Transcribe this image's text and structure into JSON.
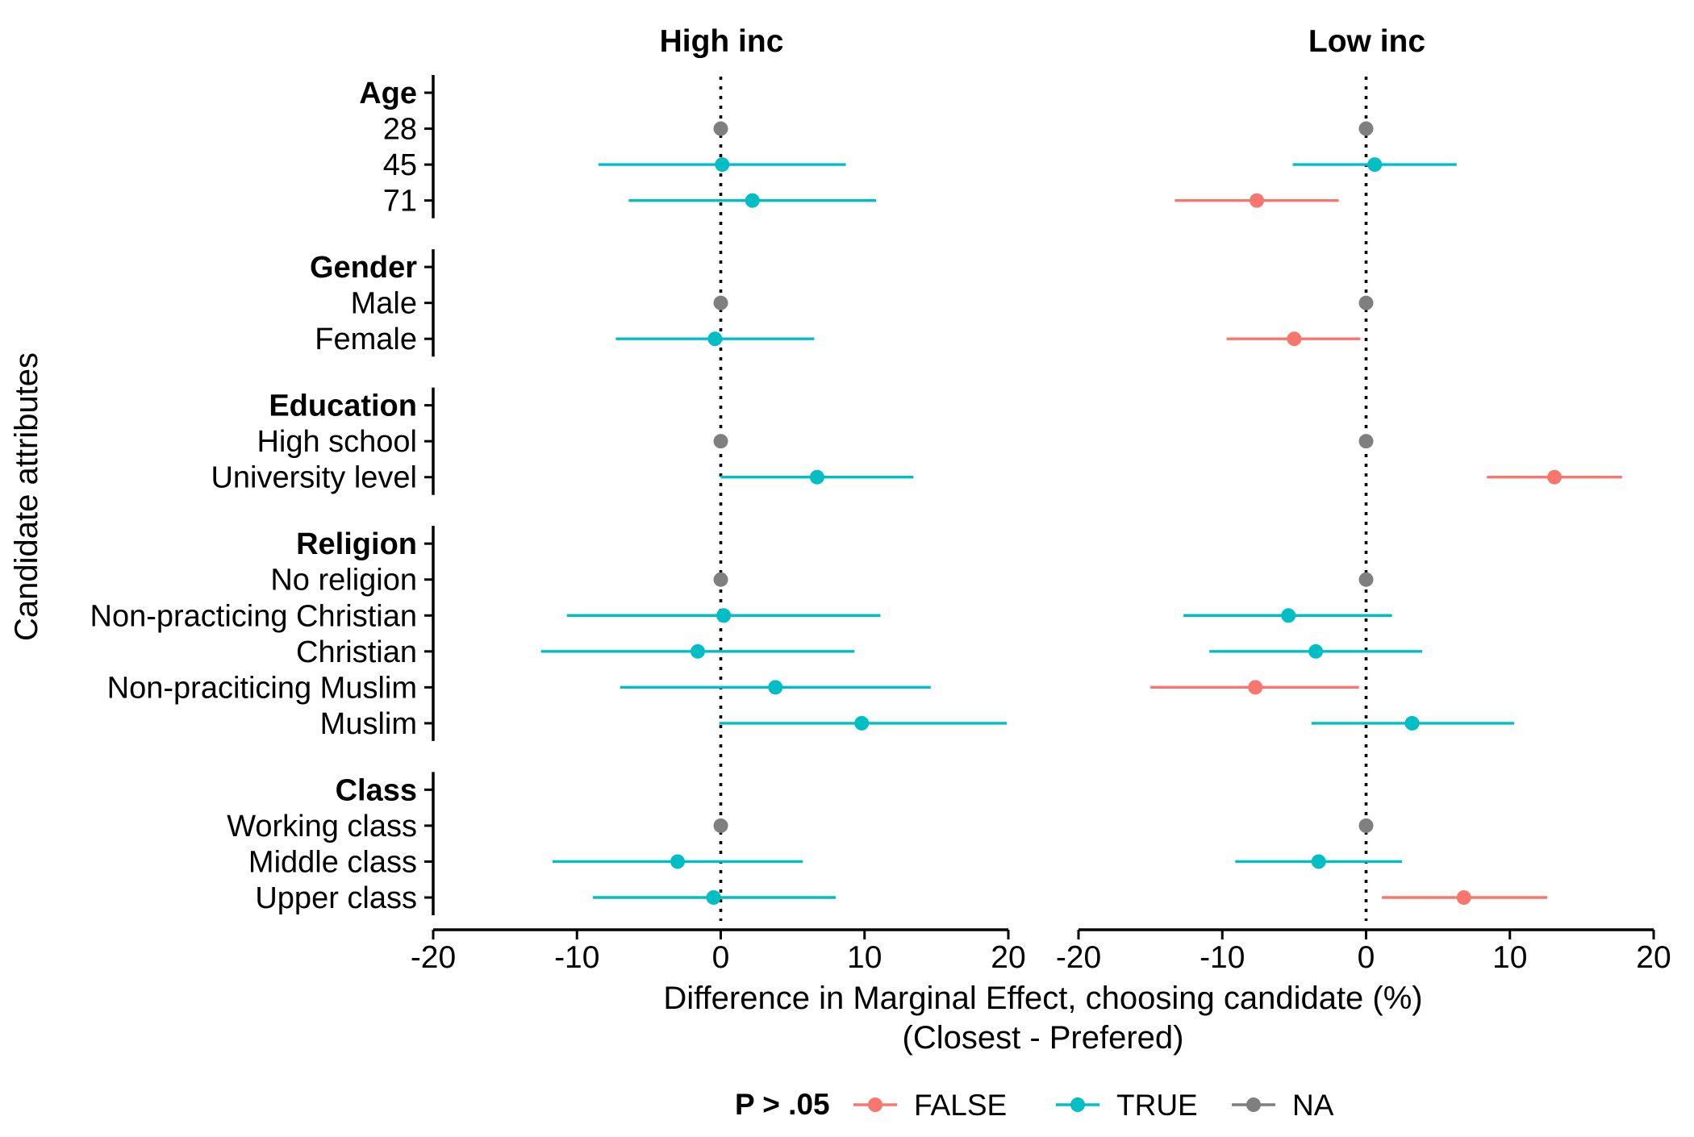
{
  "chart_data": {
    "type": "scatter",
    "subtype": "coefficient-plot-with-error-bars",
    "ylabel": "Candidate attributes",
    "xlabel": "Difference in Marginal Effect, choosing candidate (%)",
    "xlabel_line2": "(Closest - Prefered)",
    "xlim": [
      -20,
      20
    ],
    "xticks": [
      -20,
      -10,
      0,
      10,
      20
    ],
    "xtick_labels": [
      "-20",
      "-10",
      "0",
      "10",
      "20"
    ],
    "reference_line": 0,
    "grid": false,
    "panels": [
      "High inc",
      "Low inc"
    ],
    "groups": [
      {
        "label": "Age",
        "levels": [
          "28",
          "45",
          "71"
        ]
      },
      {
        "label": "Gender",
        "levels": [
          "Male",
          "Female"
        ]
      },
      {
        "label": "Education",
        "levels": [
          "High school",
          "University level"
        ]
      },
      {
        "label": "Religion",
        "levels": [
          "No religion",
          "Non-practicing Christian",
          "Christian",
          "Non-praciticing Muslim",
          "Muslim"
        ]
      },
      {
        "label": "Class",
        "levels": [
          "Working class",
          "Middle class",
          "Upper class"
        ]
      }
    ],
    "legend": {
      "title": "P > .05",
      "position": "bottom",
      "entries": [
        {
          "label": "FALSE",
          "color": "#F8766D"
        },
        {
          "label": "TRUE",
          "color": "#00BFC4"
        },
        {
          "label": "NA",
          "color": "#7F7F7F"
        }
      ]
    },
    "series": [
      {
        "panel": "High inc",
        "points": [
          {
            "level": "28",
            "est": 0,
            "lo": null,
            "hi": null,
            "sig": "NA"
          },
          {
            "level": "45",
            "est": 0.1,
            "lo": -8.5,
            "hi": 8.7,
            "sig": "TRUE"
          },
          {
            "level": "71",
            "est": 2.2,
            "lo": -6.4,
            "hi": 10.8,
            "sig": "TRUE"
          },
          {
            "level": "Male",
            "est": 0,
            "lo": null,
            "hi": null,
            "sig": "NA"
          },
          {
            "level": "Female",
            "est": -0.4,
            "lo": -7.3,
            "hi": 6.5,
            "sig": "TRUE"
          },
          {
            "level": "High school",
            "est": 0,
            "lo": null,
            "hi": null,
            "sig": "NA"
          },
          {
            "level": "University level",
            "est": 6.7,
            "lo": 0.0,
            "hi": 13.4,
            "sig": "TRUE"
          },
          {
            "level": "No religion",
            "est": 0,
            "lo": null,
            "hi": null,
            "sig": "NA"
          },
          {
            "level": "Non-practicing Christian",
            "est": 0.2,
            "lo": -10.7,
            "hi": 11.1,
            "sig": "TRUE"
          },
          {
            "level": "Christian",
            "est": -1.6,
            "lo": -12.5,
            "hi": 9.3,
            "sig": "TRUE"
          },
          {
            "level": "Non-praciticing Muslim",
            "est": 3.8,
            "lo": -7.0,
            "hi": 14.6,
            "sig": "TRUE"
          },
          {
            "level": "Muslim",
            "est": 9.8,
            "lo": -0.1,
            "hi": 19.9,
            "sig": "TRUE"
          },
          {
            "level": "Working class",
            "est": 0,
            "lo": null,
            "hi": null,
            "sig": "NA"
          },
          {
            "level": "Middle class",
            "est": -3.0,
            "lo": -11.7,
            "hi": 5.7,
            "sig": "TRUE"
          },
          {
            "level": "Upper class",
            "est": -0.5,
            "lo": -8.9,
            "hi": 8.0,
            "sig": "TRUE"
          }
        ]
      },
      {
        "panel": "Low inc",
        "points": [
          {
            "level": "28",
            "est": 0,
            "lo": null,
            "hi": null,
            "sig": "NA"
          },
          {
            "level": "45",
            "est": 0.6,
            "lo": -5.1,
            "hi": 6.3,
            "sig": "TRUE"
          },
          {
            "level": "71",
            "est": -7.6,
            "lo": -13.3,
            "hi": -1.9,
            "sig": "FALSE"
          },
          {
            "level": "Male",
            "est": 0,
            "lo": null,
            "hi": null,
            "sig": "NA"
          },
          {
            "level": "Female",
            "est": -5.0,
            "lo": -9.7,
            "hi": -0.4,
            "sig": "FALSE"
          },
          {
            "level": "High school",
            "est": 0,
            "lo": null,
            "hi": null,
            "sig": "NA"
          },
          {
            "level": "University level",
            "est": 13.1,
            "lo": 8.4,
            "hi": 17.8,
            "sig": "FALSE"
          },
          {
            "level": "No religion",
            "est": 0,
            "lo": null,
            "hi": null,
            "sig": "NA"
          },
          {
            "level": "Non-practicing Christian",
            "est": -5.4,
            "lo": -12.7,
            "hi": 1.8,
            "sig": "TRUE"
          },
          {
            "level": "Christian",
            "est": -3.5,
            "lo": -10.9,
            "hi": 3.9,
            "sig": "TRUE"
          },
          {
            "level": "Non-praciticing Muslim",
            "est": -7.7,
            "lo": -15.0,
            "hi": -0.5,
            "sig": "FALSE"
          },
          {
            "level": "Muslim",
            "est": 3.2,
            "lo": -3.8,
            "hi": 10.3,
            "sig": "TRUE"
          },
          {
            "level": "Working class",
            "est": 0,
            "lo": null,
            "hi": null,
            "sig": "NA"
          },
          {
            "level": "Middle class",
            "est": -3.3,
            "lo": -9.1,
            "hi": 2.5,
            "sig": "TRUE"
          },
          {
            "level": "Upper class",
            "est": 6.8,
            "lo": 1.1,
            "hi": 12.6,
            "sig": "FALSE"
          }
        ]
      }
    ]
  }
}
